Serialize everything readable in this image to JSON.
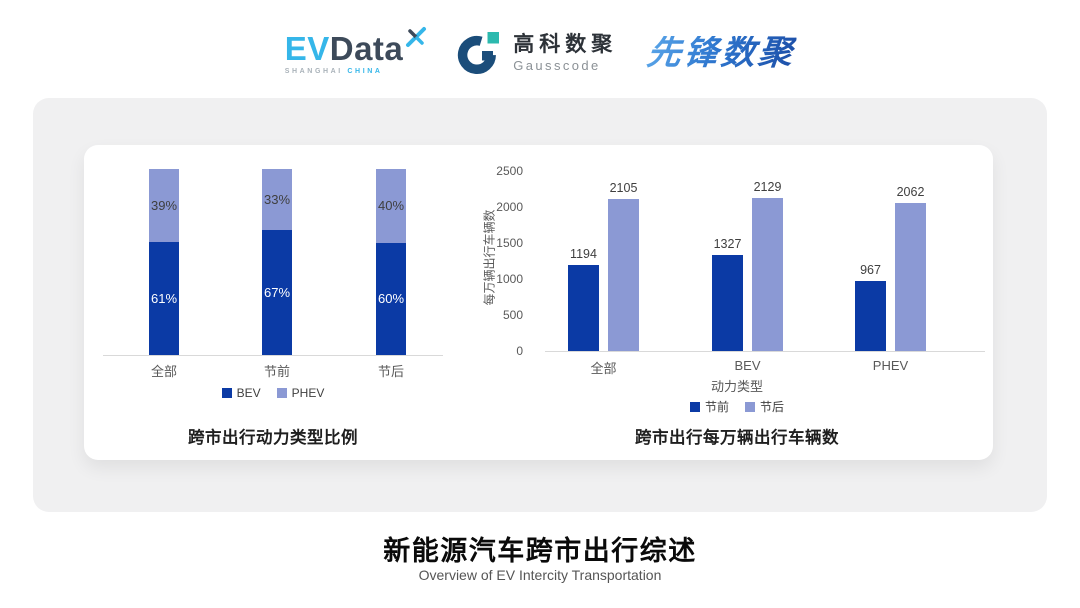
{
  "header": {
    "evdata": {
      "ev": "EV",
      "data": "Data",
      "sub_left": "SHANGHAI",
      "sub_right": "CHINA"
    },
    "gausscode": {
      "cn": "高科数聚",
      "en": "Gausscode"
    },
    "xianfeng": {
      "text": "先锋数聚"
    }
  },
  "colors": {
    "series_dark_blue": "#0b3aa5",
    "series_light_blue": "#8b99d4",
    "card_background": "#f0f0f1",
    "axis_line": "#d9d9d9",
    "tick_text": "#595959"
  },
  "chart_data": [
    {
      "type": "bar",
      "variant": "stacked-100-percent",
      "title": "跨市出行动力类型比例",
      "categories": [
        "全部",
        "节前",
        "节后"
      ],
      "series": [
        {
          "name": "BEV",
          "values": [
            61,
            67,
            60
          ],
          "unit": "%",
          "color": "#0b3aa5"
        },
        {
          "name": "PHEV",
          "values": [
            39,
            33,
            40
          ],
          "unit": "%",
          "color": "#8b99d4"
        }
      ],
      "legend_position": "bottom",
      "grid": false
    },
    {
      "type": "bar",
      "variant": "grouped",
      "title": "跨市出行每万辆出行车辆数",
      "categories": [
        "全部",
        "BEV",
        "PHEV"
      ],
      "xlabel": "动力类型",
      "ylabel": "每万辆出行车辆数",
      "ylim": [
        0,
        2500
      ],
      "yticks": [
        0,
        500,
        1000,
        1500,
        2000,
        2500
      ],
      "series": [
        {
          "name": "节前",
          "values": [
            1194,
            1327,
            967
          ],
          "color": "#0b3aa5"
        },
        {
          "name": "节后",
          "values": [
            2105,
            2129,
            2062
          ],
          "color": "#8b99d4"
        }
      ],
      "legend_position": "bottom",
      "grid": false
    }
  ],
  "footer": {
    "title": "新能源汽车跨市出行综述",
    "subtitle": "Overview of EV Intercity Transportation"
  }
}
